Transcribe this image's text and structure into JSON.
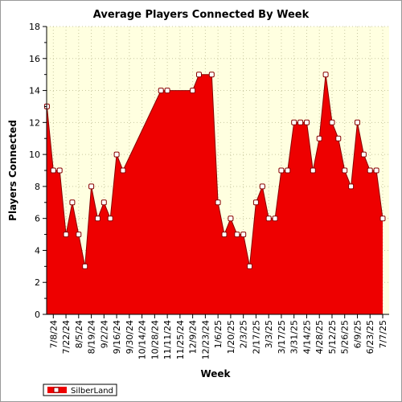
{
  "chart_data": {
    "type": "area",
    "title": "Average Players Connected By Week",
    "xlabel": "Week",
    "ylabel": "Players Connected",
    "ylim": [
      0,
      18
    ],
    "yticks": [
      0,
      2,
      4,
      6,
      8,
      10,
      12,
      14,
      16,
      18
    ],
    "grid": true,
    "legend_position": "bottom-left",
    "x_labels": [
      "7/8/24",
      "7/22/24",
      "8/5/24",
      "8/19/24",
      "9/2/24",
      "9/16/24",
      "9/30/24",
      "10/14/24",
      "10/28/24",
      "11/11/24",
      "11/25/24",
      "12/9/24",
      "12/23/24",
      "1/6/25",
      "1/20/25",
      "2/3/25",
      "2/17/25",
      "3/3/25",
      "3/17/25",
      "3/31/25",
      "4/14/25",
      "4/28/25",
      "5/12/25",
      "5/26/25",
      "6/9/25",
      "6/23/25",
      "7/7/25"
    ],
    "series": [
      {
        "name": "SilberLand",
        "color": "#ee0000",
        "points": [
          {
            "x": "7/1/24",
            "y": 13
          },
          {
            "x": "7/8/24",
            "y": 9
          },
          {
            "x": "7/15/24",
            "y": 9
          },
          {
            "x": "7/22/24",
            "y": 5
          },
          {
            "x": "7/29/24",
            "y": 7
          },
          {
            "x": "8/5/24",
            "y": 5
          },
          {
            "x": "8/12/24",
            "y": 3
          },
          {
            "x": "8/19/24",
            "y": 8
          },
          {
            "x": "8/26/24",
            "y": 6
          },
          {
            "x": "9/2/24",
            "y": 7
          },
          {
            "x": "9/9/24",
            "y": 6
          },
          {
            "x": "9/16/24",
            "y": 10
          },
          {
            "x": "9/23/24",
            "y": 9
          },
          {
            "x": "11/4/24",
            "y": 14
          },
          {
            "x": "11/11/24",
            "y": 14
          },
          {
            "x": "12/9/24",
            "y": 14
          },
          {
            "x": "12/16/24",
            "y": 15
          },
          {
            "x": "12/30/24",
            "y": 15
          },
          {
            "x": "1/6/25",
            "y": 7
          },
          {
            "x": "1/13/25",
            "y": 5
          },
          {
            "x": "1/20/25",
            "y": 6
          },
          {
            "x": "1/27/25",
            "y": 5
          },
          {
            "x": "2/3/25",
            "y": 5
          },
          {
            "x": "2/10/25",
            "y": 3
          },
          {
            "x": "2/17/25",
            "y": 7
          },
          {
            "x": "2/24/25",
            "y": 8
          },
          {
            "x": "3/3/25",
            "y": 6
          },
          {
            "x": "3/10/25",
            "y": 6
          },
          {
            "x": "3/17/25",
            "y": 9
          },
          {
            "x": "3/24/25",
            "y": 9
          },
          {
            "x": "3/31/25",
            "y": 12
          },
          {
            "x": "4/7/25",
            "y": 12
          },
          {
            "x": "4/14/25",
            "y": 12
          },
          {
            "x": "4/21/25",
            "y": 9
          },
          {
            "x": "4/28/25",
            "y": 11
          },
          {
            "x": "5/5/25",
            "y": 15
          },
          {
            "x": "5/12/25",
            "y": 12
          },
          {
            "x": "5/19/25",
            "y": 11
          },
          {
            "x": "5/26/25",
            "y": 9
          },
          {
            "x": "6/2/25",
            "y": 8
          },
          {
            "x": "6/9/25",
            "y": 12
          },
          {
            "x": "6/16/25",
            "y": 10
          },
          {
            "x": "6/23/25",
            "y": 9
          },
          {
            "x": "6/30/25",
            "y": 9
          },
          {
            "x": "7/7/25",
            "y": 6
          }
        ]
      }
    ],
    "colors": {
      "plot_background": "#ffffe0",
      "grid": "#c8c8a0",
      "fill": "#ee0000",
      "line": "#880000",
      "marker_fill": "#ffffff"
    }
  }
}
